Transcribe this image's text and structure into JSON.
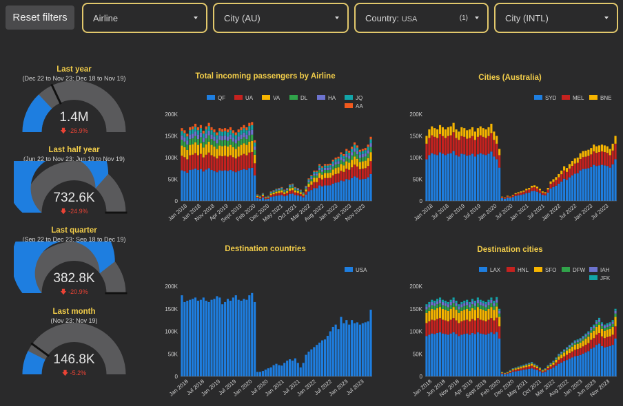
{
  "toolbar": {
    "reset_label": "Reset filters",
    "filters": [
      {
        "id": "airline",
        "label": "Airline",
        "sub": "",
        "count": ""
      },
      {
        "id": "city-au",
        "label": "City (AU)",
        "sub": "",
        "count": ""
      },
      {
        "id": "country",
        "label": "Country:",
        "sub": "USA",
        "count": "(1)"
      },
      {
        "id": "city-intl",
        "label": "City (INTL)",
        "sub": "",
        "count": ""
      }
    ]
  },
  "colors": {
    "accent": "#f2cd4a",
    "filter_border": "#e2c86c",
    "gauge_fill": "#1e7ee0",
    "gauge_track": "#5a5a5c",
    "negative": "#ea4335",
    "series": [
      "#1e7ee0",
      "#c5221f",
      "#f7b500",
      "#30a34a",
      "#6d73cf",
      "#12a4a8",
      "#f2591d"
    ]
  },
  "gauges": [
    {
      "title": "Last year",
      "subtitle": "(Dec 22 to Nov 23; Dec 18 to Nov 19)",
      "value": "1.4M",
      "change": "-26.9%",
      "fill_fraction": 0.26,
      "target_fraction": 0.36
    },
    {
      "title": "Last half year",
      "subtitle": "(Jun 22 to Nov 23; Jun 19 to Nov 19)",
      "value": "732.6K",
      "change": "-24.9%",
      "fill_fraction": 0.73,
      "target_fraction": 1.0
    },
    {
      "title": "Last quarter",
      "subtitle": "(Sep 22 to Dec 23; Sep 18 to Dec 19)",
      "value": "382.8K",
      "change": "-20.9%",
      "fill_fraction": 0.79,
      "target_fraction": 1.0
    },
    {
      "title": "Last month",
      "subtitle": "(Nov 23; Nov 19)",
      "value": "146.8K",
      "change": "-5.2%",
      "fill_fraction": 0.15,
      "target_fraction": 0.2
    }
  ],
  "chart_data": [
    {
      "id": "airline",
      "type": "bar",
      "stacked": true,
      "title": "Total incoming passengers by Airline",
      "ylim": [
        0,
        200000
      ],
      "yticks": [
        "0",
        "50K",
        "100K",
        "150K",
        "200K"
      ],
      "xticks": [
        "Jan 2018",
        "Jun 2018",
        "Nov 2018",
        "Apr 2019",
        "Sept 2019",
        "Feb 2020",
        "Dec 2020",
        "May 2021",
        "Oct 2021",
        "Mar 2022",
        "Aug 2022",
        "Jan 2023",
        "Jun 2023",
        "Nov 2023"
      ],
      "legend": "top-right",
      "categories_count": 71,
      "totals": [
        168000,
        163000,
        155000,
        170000,
        172000,
        178000,
        170000,
        175000,
        162000,
        172000,
        180000,
        170000,
        165000,
        158000,
        168000,
        166000,
        168000,
        165000,
        170000,
        163000,
        158000,
        165000,
        170000,
        175000,
        170000,
        180000,
        182000,
        140000,
        15000,
        12000,
        18000,
        10000,
        12000,
        22000,
        25000,
        28000,
        30000,
        32000,
        26000,
        30000,
        38000,
        40000,
        32000,
        30000,
        26000,
        20000,
        35000,
        52000,
        60000,
        70000,
        70000,
        85000,
        80000,
        85000,
        85000,
        86000,
        95000,
        100000,
        102000,
        112000,
        108000,
        120000,
        116000,
        125000,
        135000,
        128000,
        118000,
        120000,
        122000,
        130000,
        148000
      ],
      "series": [
        {
          "name": "QF",
          "share": 0.42
        },
        {
          "name": "UA",
          "share": 0.2
        },
        {
          "name": "VA",
          "share": 0.14
        },
        {
          "name": "DL",
          "share": 0.08
        },
        {
          "name": "HA",
          "share": 0.06
        },
        {
          "name": "JQ",
          "share": 0.06
        },
        {
          "name": "AA",
          "share": 0.04
        }
      ]
    },
    {
      "id": "cities-au",
      "type": "bar",
      "stacked": true,
      "title": "Cities (Australia)",
      "ylim": [
        0,
        200000
      ],
      "yticks": [
        "0",
        "50K",
        "100K",
        "150K",
        "200K"
      ],
      "xticks": [
        "Jan 2018",
        "Jul 2018",
        "Jan 2019",
        "Jul 2019",
        "Jan 2020",
        "Jul 2020",
        "Jan 2021",
        "Jul 2021",
        "Jan 2022",
        "Jul 2022",
        "Jan 2023",
        "Jul 2023"
      ],
      "legend": "top-right",
      "categories_count": 71,
      "totals": [
        150000,
        165000,
        172000,
        168000,
        165000,
        175000,
        170000,
        165000,
        170000,
        172000,
        180000,
        165000,
        160000,
        170000,
        168000,
        163000,
        165000,
        170000,
        160000,
        168000,
        172000,
        168000,
        165000,
        170000,
        178000,
        160000,
        150000,
        120000,
        10000,
        8000,
        12000,
        10000,
        14000,
        18000,
        20000,
        22000,
        24000,
        28000,
        30000,
        35000,
        36000,
        33000,
        28000,
        22000,
        20000,
        30000,
        45000,
        50000,
        55000,
        62000,
        70000,
        80000,
        76000,
        85000,
        92000,
        98000,
        100000,
        110000,
        115000,
        116000,
        118000,
        122000,
        130000,
        126000,
        128000,
        130000,
        128000,
        126000,
        120000,
        132000,
        150000
      ],
      "series": [
        {
          "name": "SYD",
          "share": 0.64
        },
        {
          "name": "MEL",
          "share": 0.24
        },
        {
          "name": "BNE",
          "share": 0.12
        }
      ]
    },
    {
      "id": "countries",
      "type": "bar",
      "stacked": false,
      "title": "Destination countries",
      "ylim": [
        0,
        200000
      ],
      "yticks": [
        "0",
        "50K",
        "100K",
        "150K",
        "200K"
      ],
      "xticks": [
        "Jan 2018",
        "Jul 2018",
        "Jan 2019",
        "Jul 2019",
        "Jan 2020",
        "Jul 2020",
        "Jan 2021",
        "Jul 2021",
        "Jan 2022",
        "Jul 2022",
        "Jan 2023",
        "Jul 2023"
      ],
      "legend": "top-right",
      "categories_count": 71,
      "totals": [
        180000,
        165000,
        168000,
        170000,
        172000,
        175000,
        168000,
        170000,
        175000,
        168000,
        165000,
        170000,
        172000,
        178000,
        175000,
        160000,
        165000,
        172000,
        168000,
        175000,
        180000,
        170000,
        168000,
        172000,
        170000,
        180000,
        185000,
        165000,
        10000,
        10000,
        12000,
        15000,
        18000,
        20000,
        25000,
        28000,
        25000,
        24000,
        30000,
        35000,
        38000,
        35000,
        40000,
        30000,
        20000,
        30000,
        48000,
        55000,
        60000,
        65000,
        70000,
        75000,
        80000,
        82000,
        90000,
        100000,
        110000,
        115000,
        105000,
        132000,
        118000,
        125000,
        115000,
        125000,
        118000,
        120000,
        115000,
        118000,
        120000,
        122000,
        148000
      ],
      "series": [
        {
          "name": "USA",
          "share": 1.0
        }
      ]
    },
    {
      "id": "cities-dest",
      "type": "bar",
      "stacked": true,
      "title": "Destination cities",
      "ylim": [
        0,
        200000
      ],
      "yticks": [
        "0",
        "50K",
        "100K",
        "150K",
        "200K"
      ],
      "xticks": [
        "Jan 2018",
        "Jun 2018",
        "Nov 2018",
        "Apr 2019",
        "Sept 2019",
        "Feb 2020",
        "Dec 2020",
        "May 2021",
        "Oct 2021",
        "Mar 2022",
        "Aug 2022",
        "Jan 2023",
        "Jun 2023",
        "Nov 2023"
      ],
      "legend": "top-right",
      "categories_count": 71,
      "totals": [
        160000,
        165000,
        170000,
        168000,
        172000,
        175000,
        170000,
        168000,
        165000,
        170000,
        175000,
        168000,
        160000,
        165000,
        168000,
        170000,
        165000,
        172000,
        168000,
        175000,
        170000,
        168000,
        165000,
        170000,
        175000,
        168000,
        176000,
        150000,
        10000,
        8000,
        10000,
        14000,
        18000,
        20000,
        22000,
        24000,
        26000,
        28000,
        30000,
        32000,
        28000,
        25000,
        20000,
        15000,
        18000,
        25000,
        30000,
        35000,
        42000,
        50000,
        55000,
        60000,
        65000,
        70000,
        75000,
        80000,
        82000,
        85000,
        90000,
        95000,
        100000,
        110000,
        115000,
        125000,
        130000,
        120000,
        115000,
        118000,
        120000,
        125000,
        150000
      ],
      "series": [
        {
          "name": "LAX",
          "share": 0.56
        },
        {
          "name": "HNL",
          "share": 0.18
        },
        {
          "name": "SFO",
          "share": 0.14
        },
        {
          "name": "DFW",
          "share": 0.05
        },
        {
          "name": "IAH",
          "share": 0.04
        },
        {
          "name": "JFK",
          "share": 0.03
        }
      ]
    }
  ]
}
